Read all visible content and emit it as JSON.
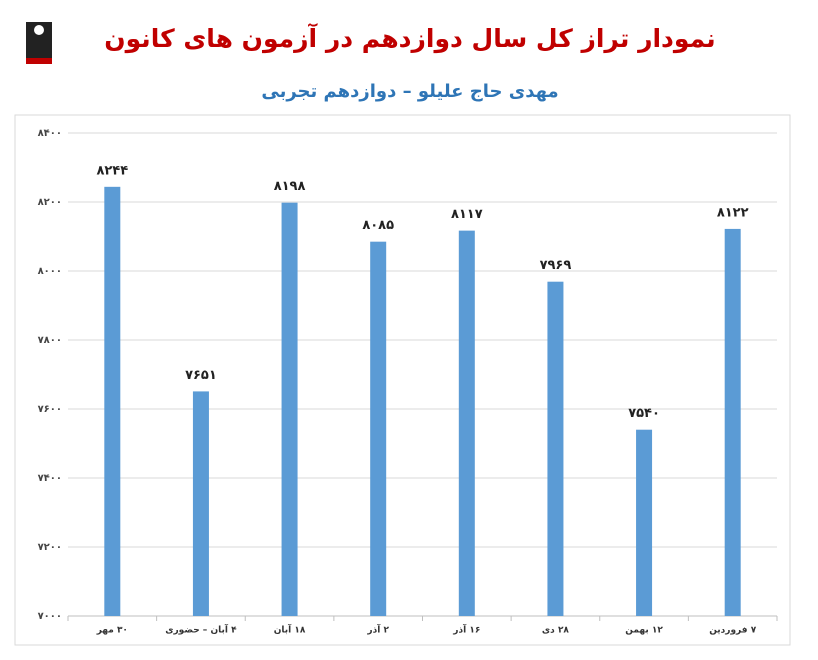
{
  "chart_data": {
    "type": "bar",
    "title": "نمودار تراز کل سال دوازدهم در آزمون های کانون",
    "subtitle": "مهدی حاج علیلو – دوازدهم تجربی",
    "categories": [
      "۳۰ مهر",
      "۴ آبان – حضوری",
      "۱۸ آبان",
      "۲ آذر",
      "۱۶ آذر",
      "۲۸ دی",
      "۱۲ بهمن",
      "۷ فروردین"
    ],
    "values": [
      8244,
      7651,
      8198,
      8085,
      8117,
      7969,
      7540,
      8122
    ],
    "value_labels": [
      "۸۲۴۴",
      "۷۶۵۱",
      "۸۱۹۸",
      "۸۰۸۵",
      "۸۱۱۷",
      "۷۹۶۹",
      "۷۵۴۰",
      "۸۱۲۲"
    ],
    "color": "#5b9bd5",
    "ylim": [
      7000,
      8400
    ],
    "yticks": [
      {
        "value": 7000,
        "label": "۷۰۰۰"
      },
      {
        "value": 7200,
        "label": "۷۲۰۰"
      },
      {
        "value": 7400,
        "label": "۷۴۰۰"
      },
      {
        "value": 7600,
        "label": "۷۶۰۰"
      },
      {
        "value": 7800,
        "label": "۷۸۰۰"
      },
      {
        "value": 8000,
        "label": "۸۰۰۰"
      },
      {
        "value": 8200,
        "label": "۸۲۰۰"
      },
      {
        "value": 8400,
        "label": "۸۴۰۰"
      }
    ],
    "grid": true
  }
}
